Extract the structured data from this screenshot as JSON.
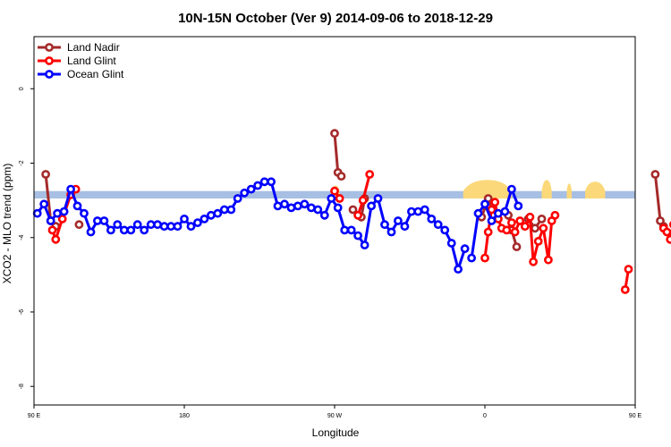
{
  "chart_data": {
    "type": "line",
    "title": "10N-15N October (Ver 9)   2014-09-06 to 2018-12-29",
    "xlabel": "Longitude",
    "ylabel": "XCO2 - MLO trend (ppm)",
    "xlim": [
      90,
      450
    ],
    "ylim": [
      -8.5,
      1.4
    ],
    "x_ticks": [
      {
        "value": 90,
        "label": "90 E"
      },
      {
        "value": 180,
        "label": "180"
      },
      {
        "value": 270,
        "label": "90 W"
      },
      {
        "value": 360,
        "label": "0"
      },
      {
        "value": 450,
        "label": "90 E"
      },
      {
        "value": 540,
        "label": "180"
      }
    ],
    "y_ticks": [
      {
        "value": 0,
        "label": "0"
      },
      {
        "value": -2,
        "label": "-2"
      },
      {
        "value": -4,
        "label": "-4"
      },
      {
        "value": -6,
        "label": "-6"
      },
      {
        "value": -8,
        "label": "-8"
      }
    ],
    "grid": false,
    "legend_position": "top-left",
    "band": {
      "y_center": -2.85,
      "y_halfwidth": 0.1,
      "color": "#a7bfe3",
      "land_color": "#fbd87a",
      "land_segments": [
        {
          "x_start": 268,
          "x_end": 273,
          "y_top": -2.6
        },
        {
          "x_start": 347,
          "x_end": 376,
          "y_top": -2.45
        },
        {
          "x_start": 394,
          "x_end": 400,
          "y_top": -2.45
        },
        {
          "x_start": 409,
          "x_end": 412,
          "y_top": -2.55
        },
        {
          "x_start": 420,
          "x_end": 432,
          "y_top": -2.5
        }
      ]
    },
    "series": [
      {
        "name": "Land Nadir",
        "color": "#a52a2a",
        "segments": [
          {
            "x": [
              97,
              100,
              103
            ],
            "y": [
              -2.3,
              -3.55,
              -3.7
            ]
          },
          {
            "x": [
              117
            ],
            "y": [
              -3.65
            ]
          },
          {
            "x": [
              270,
              272,
              274
            ],
            "y": [
              -1.2,
              -2.25,
              -2.35
            ]
          },
          {
            "x": [
              281,
              286,
              288
            ],
            "y": [
              -3.25,
              -3.45,
              -2.95
            ]
          },
          {
            "x": [
              358,
              362,
              365
            ],
            "y": [
              -3.45,
              -2.95,
              -3.1
            ]
          },
          {
            "x": [
              374,
              376,
              379
            ],
            "y": [
              -3.4,
              -3.8,
              -4.25
            ]
          },
          {
            "x": [
              386,
              390,
              394
            ],
            "y": [
              -3.5,
              -3.75,
              -3.5
            ]
          },
          {
            "x": [
              462,
              465,
              467
            ],
            "y": [
              -2.3,
              -3.55,
              -3.7
            ]
          },
          {
            "x": [
              480
            ],
            "y": [
              -3.65
            ]
          }
        ]
      },
      {
        "name": "Land Glint",
        "color": "#ff0000",
        "segments": [
          {
            "x": [
              101,
              103,
              107,
              112,
              115
            ],
            "y": [
              -3.8,
              -4.05,
              -3.5,
              -2.85,
              -2.7
            ]
          },
          {
            "x": [
              270,
              273
            ],
            "y": [
              -2.75,
              -2.95
            ]
          },
          {
            "x": [
              284,
              287,
              291
            ],
            "y": [
              -3.4,
              -3.0,
              -2.3
            ]
          },
          {
            "x": [
              360,
              362,
              364,
              366,
              368,
              370,
              373,
              376,
              378,
              381,
              384,
              387,
              389,
              392,
              395,
              398,
              400,
              402
            ],
            "y": [
              -4.55,
              -3.85,
              -3.25,
              -3.05,
              -3.5,
              -3.75,
              -3.8,
              -3.6,
              -3.85,
              -3.55,
              -3.7,
              -3.45,
              -4.65,
              -4.1,
              -3.75,
              -4.6,
              -3.55,
              -3.4
            ]
          },
          {
            "x": [
              444,
              446
            ],
            "y": [
              -5.4,
              -4.85
            ]
          },
          {
            "x": [
              467,
              469,
              471,
              473
            ],
            "y": [
              -3.75,
              -3.85,
              -4.05,
              -3.65
            ]
          },
          {
            "x": [
              478
            ],
            "y": [
              -2.7
            ]
          }
        ]
      },
      {
        "name": "Ocean Glint",
        "color": "#0000ff",
        "segments": [
          {
            "x": [
              92,
              96,
              100,
              104,
              108,
              112,
              116,
              120,
              124,
              128,
              132,
              136,
              140,
              144,
              148,
              152,
              156,
              160,
              164,
              168,
              172,
              176,
              180,
              184,
              188,
              192,
              196,
              200,
              204,
              208,
              212,
              216,
              220,
              224,
              228,
              232,
              236,
              240,
              244,
              248,
              252,
              256,
              260,
              264,
              268,
              272,
              276,
              280,
              284,
              288,
              292,
              296,
              300,
              304,
              308,
              312,
              316,
              320,
              324,
              328,
              332,
              336,
              340,
              344,
              348
            ],
            "y": [
              -3.35,
              -3.1,
              -3.55,
              -3.35,
              -3.3,
              -2.7,
              -3.15,
              -3.35,
              -3.85,
              -3.55,
              -3.55,
              -3.8,
              -3.65,
              -3.8,
              -3.8,
              -3.65,
              -3.8,
              -3.65,
              -3.65,
              -3.7,
              -3.7,
              -3.7,
              -3.5,
              -3.7,
              -3.6,
              -3.5,
              -3.4,
              -3.35,
              -3.25,
              -3.25,
              -2.95,
              -2.8,
              -2.7,
              -2.6,
              -2.5,
              -2.5,
              -3.15,
              -3.1,
              -3.2,
              -3.15,
              -3.1,
              -3.2,
              -3.25,
              -3.4,
              -2.95,
              -3.2,
              -3.8,
              -3.8,
              -3.95,
              -4.2,
              -3.15,
              -2.95,
              -3.65,
              -3.85,
              -3.55,
              -3.7,
              -3.3,
              -3.3,
              -3.25,
              -3.5,
              -3.65,
              -3.8,
              -4.15,
              -4.85,
              -4.3
            ]
          },
          {
            "x": [
              352,
              356,
              360,
              364,
              368,
              372,
              376,
              380
            ],
            "y": [
              -4.55,
              -3.35,
              -3.1,
              -3.55,
              -3.35,
              -3.3,
              -2.7,
              -3.15
            ]
          }
        ]
      }
    ],
    "legend": [
      {
        "label": "Land Nadir",
        "color": "#a52a2a"
      },
      {
        "label": "Land Glint",
        "color": "#ff0000"
      },
      {
        "label": "Ocean Glint",
        "color": "#0000ff"
      }
    ]
  }
}
